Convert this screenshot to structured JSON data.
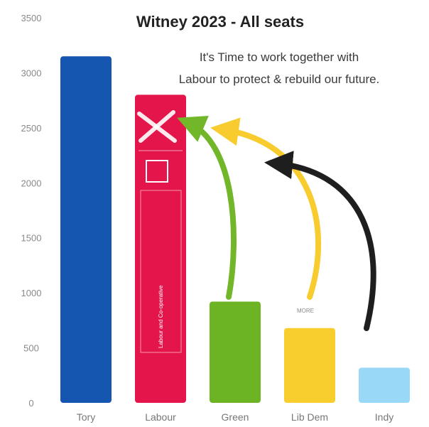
{
  "chart_data": {
    "type": "bar",
    "title": "Witney 2023 - All seats",
    "categories": [
      "Tory",
      "Labour",
      "Green",
      "Lib Dem",
      "Indy"
    ],
    "values": [
      3150,
      2800,
      920,
      680,
      320
    ],
    "ylim": [
      0,
      3500
    ],
    "yticks": [
      0,
      500,
      1000,
      1500,
      2000,
      2500,
      3000,
      3500
    ],
    "ytick_labels": [
      "0",
      "500",
      "1000",
      "1500",
      "2000",
      "2500",
      "3000",
      "3500"
    ],
    "colors": [
      "#1557b0",
      "#e4154b",
      "#6cb424",
      "#f8cd2e",
      "#9ad8f8"
    ],
    "annotation": [
      "It's Time to work together with",
      "Labour to protect & rebuild our future."
    ],
    "ballot_label": "Labour and Co-operative",
    "bar_note": "MORE",
    "arrow_colors": [
      "#72b72a",
      "#f8cc2e",
      "#1e1e1e"
    ],
    "grid": false,
    "legend": "none"
  }
}
